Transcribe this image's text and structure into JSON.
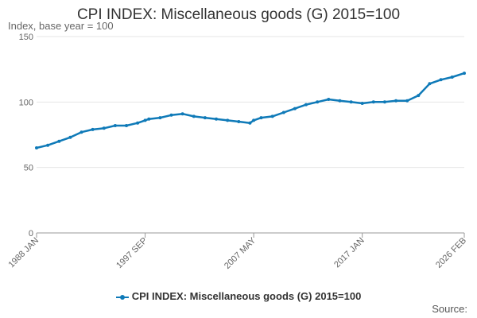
{
  "chart_data": {
    "type": "line",
    "title": "CPI INDEX: Miscellaneous goods (G) 2015=100",
    "subtitle": "Index, base year = 100",
    "xlabel": "",
    "ylabel": "",
    "ylim": [
      0,
      150
    ],
    "yticks": [
      0,
      50,
      100,
      150
    ],
    "xtick_labels": [
      "1988 JAN",
      "1997 SEP",
      "2007 MAY",
      "2017 JAN",
      "2026 FEB"
    ],
    "grid": "horizontal",
    "legend_position": "bottom",
    "series": [
      {
        "name": "CPI INDEX: Miscellaneous goods (G) 2015=100",
        "color": "#0f7ab8",
        "x": [
          "1988 JAN",
          "1989 JAN",
          "1990 JAN",
          "1991 JAN",
          "1992 JAN",
          "1993 JAN",
          "1994 JAN",
          "1995 JAN",
          "1996 JAN",
          "1997 JAN",
          "1997 SEP",
          "1998 JAN",
          "1999 JAN",
          "2000 JAN",
          "2001 JAN",
          "2002 JAN",
          "2003 JAN",
          "2004 JAN",
          "2005 JAN",
          "2006 JAN",
          "2007 JAN",
          "2007 MAY",
          "2008 JAN",
          "2009 JAN",
          "2010 JAN",
          "2011 JAN",
          "2012 JAN",
          "2013 JAN",
          "2014 JAN",
          "2015 JAN",
          "2016 JAN",
          "2017 JAN",
          "2018 JAN",
          "2019 JAN",
          "2020 JAN",
          "2021 JAN",
          "2022 JAN",
          "2023 JAN",
          "2024 JAN",
          "2025 JAN",
          "2026 FEB"
        ],
        "values": [
          65,
          67,
          70,
          73,
          77,
          79,
          80,
          82,
          82,
          84,
          86,
          87,
          88,
          90,
          91,
          89,
          88,
          87,
          86,
          85,
          84,
          86,
          88,
          89,
          92,
          95,
          98,
          100,
          102,
          101,
          100,
          99,
          100,
          100,
          101,
          101,
          105,
          114,
          117,
          119,
          122
        ]
      }
    ]
  },
  "legend": {
    "label": "CPI INDEX: Miscellaneous goods (G) 2015=100"
  },
  "source_label": "Source:"
}
